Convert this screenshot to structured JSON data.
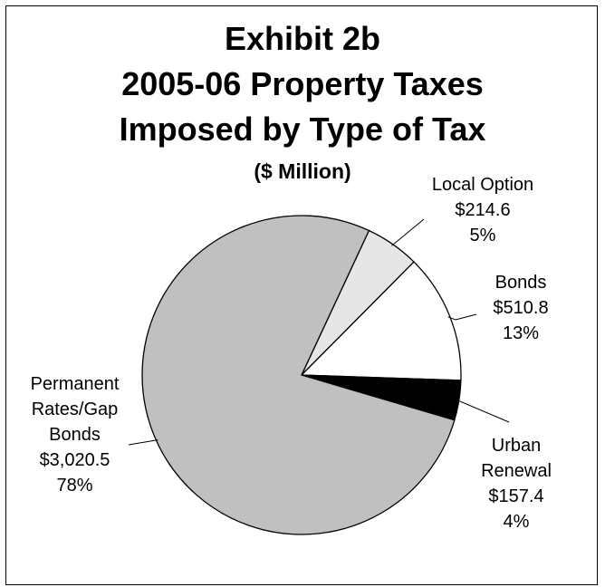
{
  "chart_data": {
    "type": "pie",
    "title": "Exhibit 2b",
    "subtitle_lines": [
      "2005-06 Property Taxes",
      "Imposed by Type of Tax"
    ],
    "units": "($ Million)",
    "slices": [
      {
        "name": "Local Option",
        "name_lines": [
          "Local Option"
        ],
        "value": 214.6,
        "value_label": "$214.6",
        "percent_label": "5%",
        "color": "#e6e6e6"
      },
      {
        "name": "Bonds",
        "name_lines": [
          "Bonds"
        ],
        "value": 510.8,
        "value_label": "$510.8",
        "percent_label": "13%",
        "color": "#ffffff"
      },
      {
        "name": "Urban Renewal",
        "name_lines": [
          "Urban",
          "Renewal"
        ],
        "value": 157.4,
        "value_label": "$157.4",
        "percent_label": "4%",
        "color": "#000000"
      },
      {
        "name": "Permanent Rates/Gap Bonds",
        "name_lines": [
          "Permanent",
          "Rates/Gap",
          "Bonds"
        ],
        "value": 3020.5,
        "value_label": "$3,020.5",
        "percent_label": "78%",
        "color": "#c0c0c0"
      }
    ]
  }
}
